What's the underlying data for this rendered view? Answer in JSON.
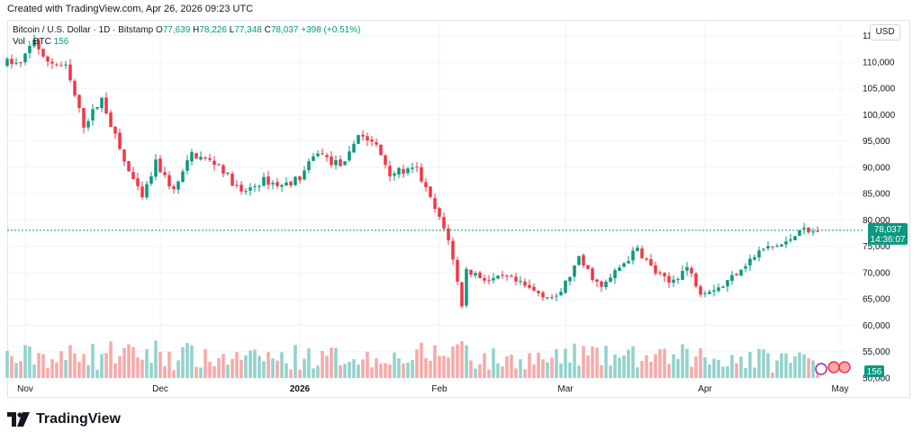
{
  "header": {
    "created_text": "Created with TradingView.com, Apr 26, 2026 09:23 UTC",
    "currency_button": "USD"
  },
  "legend": {
    "symbol": "Bitcoin / U.S. Dollar · 1D · Bitstamp",
    "open_label": "O",
    "open_value": "77,639",
    "high_label": "H",
    "high_value": "78,226",
    "low_label": "L",
    "low_value": "77,348",
    "close_label": "C",
    "close_value": "78,037",
    "change_value": "+398 (+0.51%)",
    "volume_label": "Vol · BTC",
    "volume_value": "156"
  },
  "price_badge": {
    "price": "78,037",
    "countdown": "14:36:07"
  },
  "volume_badge": "156",
  "brand": {
    "name": "TradingView"
  },
  "colors": {
    "up": "#089981",
    "down": "#f23645",
    "up_volume": "#92d2cc",
    "down_volume": "#f7a9a7",
    "grid": "#f0f3fa",
    "last_price_line": "#089981"
  },
  "chart_data": {
    "type": "candlestick",
    "title": "Bitcoin / U.S. Dollar · 1D · Bitstamp",
    "y_ticks": [
      "115,000",
      "110,000",
      "105,000",
      "100,000",
      "95,000",
      "90,000",
      "85,000",
      "80,000",
      "75,000",
      "70,000",
      "65,000",
      "60,000",
      "55,000",
      "50,000"
    ],
    "y_range": [
      50000,
      118000
    ],
    "x_ticks": [
      {
        "label": "Nov",
        "date": "2025-11-01"
      },
      {
        "label": "Dec",
        "date": "2025-12-01"
      },
      {
        "label": "2026",
        "date": "2026-01-01"
      },
      {
        "label": "Feb",
        "date": "2026-02-01"
      },
      {
        "label": "Mar",
        "date": "2026-03-01"
      },
      {
        "label": "Apr",
        "date": "2026-04-01"
      },
      {
        "label": "May",
        "date": "2026-05-01"
      }
    ],
    "x_range": [
      "2025-10-28",
      "2026-05-04"
    ],
    "close_anchors": [
      {
        "date": "2025-10-28",
        "close": 110000
      },
      {
        "date": "2025-10-31",
        "close": 109500
      },
      {
        "date": "2025-11-03",
        "close": 114500
      },
      {
        "date": "2025-11-05",
        "close": 110500
      },
      {
        "date": "2025-11-10",
        "close": 109000
      },
      {
        "date": "2025-11-14",
        "close": 98000
      },
      {
        "date": "2025-11-18",
        "close": 103000
      },
      {
        "date": "2025-11-23",
        "close": 91000
      },
      {
        "date": "2025-11-27",
        "close": 84000
      },
      {
        "date": "2025-11-30",
        "close": 90800
      },
      {
        "date": "2025-12-04",
        "close": 85500
      },
      {
        "date": "2025-12-08",
        "close": 92500
      },
      {
        "date": "2025-12-14",
        "close": 90500
      },
      {
        "date": "2025-12-19",
        "close": 85000
      },
      {
        "date": "2025-12-24",
        "close": 87500
      },
      {
        "date": "2025-12-28",
        "close": 86500
      },
      {
        "date": "2026-01-01",
        "close": 88000
      },
      {
        "date": "2026-01-05",
        "close": 93000
      },
      {
        "date": "2026-01-08",
        "close": 91000
      },
      {
        "date": "2026-01-11",
        "close": 90500
      },
      {
        "date": "2026-01-14",
        "close": 96500
      },
      {
        "date": "2026-01-18",
        "close": 94000
      },
      {
        "date": "2026-01-21",
        "close": 89000
      },
      {
        "date": "2026-01-27",
        "close": 89500
      },
      {
        "date": "2026-01-31",
        "close": 82000
      },
      {
        "date": "2026-02-03",
        "close": 76500
      },
      {
        "date": "2026-02-06",
        "close": 64000
      },
      {
        "date": "2026-02-07",
        "close": 70500
      },
      {
        "date": "2026-02-12",
        "close": 68500
      },
      {
        "date": "2026-02-16",
        "close": 69000
      },
      {
        "date": "2026-02-22",
        "close": 66500
      },
      {
        "date": "2026-02-27",
        "close": 65000
      },
      {
        "date": "2026-03-04",
        "close": 72500
      },
      {
        "date": "2026-03-09",
        "close": 67000
      },
      {
        "date": "2026-03-13",
        "close": 71000
      },
      {
        "date": "2026-03-17",
        "close": 74500
      },
      {
        "date": "2026-03-21",
        "close": 70000
      },
      {
        "date": "2026-03-24",
        "close": 68000
      },
      {
        "date": "2026-03-28",
        "close": 71000
      },
      {
        "date": "2026-03-31",
        "close": 66500
      },
      {
        "date": "2026-04-05",
        "close": 67500
      },
      {
        "date": "2026-04-09",
        "close": 71000
      },
      {
        "date": "2026-04-14",
        "close": 74500
      },
      {
        "date": "2026-04-19",
        "close": 75500
      },
      {
        "date": "2026-04-22",
        "close": 78500
      },
      {
        "date": "2026-04-24",
        "close": 77500
      },
      {
        "date": "2026-04-26",
        "close": 78037
      }
    ],
    "last_close": 78037,
    "volume_series_name": "Vol · BTC",
    "volume_last": 156
  }
}
